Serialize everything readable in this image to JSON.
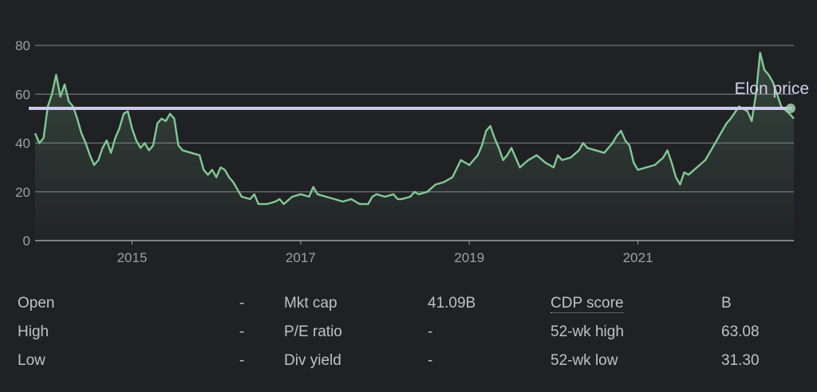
{
  "chart_data": {
    "type": "area",
    "x_range": [
      2013.85,
      2022.85
    ],
    "ylim": [
      0,
      80
    ],
    "y_ticks": [
      0,
      20,
      40,
      60,
      80
    ],
    "x_ticks": [
      2015,
      2017,
      2019,
      2021
    ],
    "x_tick_labels": [
      "2015",
      "2017",
      "2019",
      "2021"
    ],
    "grid": true,
    "series": [
      {
        "color": "#81c995",
        "points": [
          [
            2013.85,
            44
          ],
          [
            2013.9,
            40
          ],
          [
            2013.95,
            42
          ],
          [
            2014.0,
            55
          ],
          [
            2014.05,
            60
          ],
          [
            2014.1,
            68
          ],
          [
            2014.15,
            59
          ],
          [
            2014.2,
            64
          ],
          [
            2014.25,
            57
          ],
          [
            2014.3,
            55
          ],
          [
            2014.35,
            50
          ],
          [
            2014.4,
            44
          ],
          [
            2014.45,
            40
          ],
          [
            2014.5,
            35
          ],
          [
            2014.55,
            31
          ],
          [
            2014.6,
            33
          ],
          [
            2014.65,
            38
          ],
          [
            2014.7,
            41
          ],
          [
            2014.75,
            36
          ],
          [
            2014.8,
            42
          ],
          [
            2014.85,
            46
          ],
          [
            2014.9,
            52
          ],
          [
            2014.95,
            53
          ],
          [
            2015.0,
            46
          ],
          [
            2015.05,
            41
          ],
          [
            2015.1,
            38
          ],
          [
            2015.15,
            40
          ],
          [
            2015.2,
            37
          ],
          [
            2015.25,
            39
          ],
          [
            2015.3,
            48
          ],
          [
            2015.35,
            50
          ],
          [
            2015.4,
            49
          ],
          [
            2015.45,
            52
          ],
          [
            2015.5,
            50
          ],
          [
            2015.55,
            39
          ],
          [
            2015.6,
            37
          ],
          [
            2015.7,
            36
          ],
          [
            2015.8,
            35
          ],
          [
            2015.85,
            29
          ],
          [
            2015.9,
            27
          ],
          [
            2015.95,
            29
          ],
          [
            2016.0,
            26
          ],
          [
            2016.05,
            30
          ],
          [
            2016.1,
            29
          ],
          [
            2016.15,
            26
          ],
          [
            2016.2,
            24
          ],
          [
            2016.25,
            21
          ],
          [
            2016.3,
            18
          ],
          [
            2016.4,
            17
          ],
          [
            2016.45,
            19
          ],
          [
            2016.5,
            15
          ],
          [
            2016.6,
            15
          ],
          [
            2016.7,
            16
          ],
          [
            2016.75,
            17
          ],
          [
            2016.8,
            15
          ],
          [
            2016.9,
            18
          ],
          [
            2017.0,
            19
          ],
          [
            2017.1,
            18
          ],
          [
            2017.15,
            22
          ],
          [
            2017.2,
            19
          ],
          [
            2017.3,
            18
          ],
          [
            2017.4,
            17
          ],
          [
            2017.5,
            16
          ],
          [
            2017.6,
            17
          ],
          [
            2017.7,
            15
          ],
          [
            2017.8,
            15
          ],
          [
            2017.85,
            18
          ],
          [
            2017.9,
            19
          ],
          [
            2018.0,
            18
          ],
          [
            2018.1,
            19
          ],
          [
            2018.15,
            17
          ],
          [
            2018.2,
            17
          ],
          [
            2018.3,
            18
          ],
          [
            2018.35,
            20
          ],
          [
            2018.4,
            19
          ],
          [
            2018.5,
            20
          ],
          [
            2018.6,
            23
          ],
          [
            2018.7,
            24
          ],
          [
            2018.8,
            26
          ],
          [
            2018.9,
            33
          ],
          [
            2019.0,
            31
          ],
          [
            2019.1,
            35
          ],
          [
            2019.15,
            39
          ],
          [
            2019.2,
            45
          ],
          [
            2019.25,
            47
          ],
          [
            2019.3,
            42
          ],
          [
            2019.35,
            38
          ],
          [
            2019.4,
            33
          ],
          [
            2019.45,
            35
          ],
          [
            2019.5,
            38
          ],
          [
            2019.55,
            34
          ],
          [
            2019.6,
            30
          ],
          [
            2019.7,
            33
          ],
          [
            2019.8,
            35
          ],
          [
            2019.9,
            32
          ],
          [
            2020.0,
            30
          ],
          [
            2020.05,
            35
          ],
          [
            2020.1,
            33
          ],
          [
            2020.2,
            34
          ],
          [
            2020.3,
            37
          ],
          [
            2020.35,
            40
          ],
          [
            2020.4,
            38
          ],
          [
            2020.5,
            37
          ],
          [
            2020.6,
            36
          ],
          [
            2020.7,
            40
          ],
          [
            2020.75,
            43
          ],
          [
            2020.8,
            45
          ],
          [
            2020.85,
            41
          ],
          [
            2020.9,
            39
          ],
          [
            2020.95,
            32
          ],
          [
            2021.0,
            29
          ],
          [
            2021.1,
            30
          ],
          [
            2021.2,
            31
          ],
          [
            2021.3,
            34
          ],
          [
            2021.35,
            37
          ],
          [
            2021.4,
            32
          ],
          [
            2021.45,
            26
          ],
          [
            2021.5,
            23
          ],
          [
            2021.55,
            28
          ],
          [
            2021.6,
            27
          ],
          [
            2021.7,
            30
          ],
          [
            2021.8,
            33
          ],
          [
            2021.9,
            39
          ],
          [
            2022.0,
            45
          ],
          [
            2022.05,
            48
          ],
          [
            2022.1,
            50
          ],
          [
            2022.2,
            55
          ],
          [
            2022.3,
            53
          ],
          [
            2022.35,
            49
          ],
          [
            2022.4,
            60
          ],
          [
            2022.45,
            77
          ],
          [
            2022.5,
            70
          ],
          [
            2022.55,
            68
          ],
          [
            2022.6,
            65
          ],
          [
            2022.65,
            60
          ],
          [
            2022.7,
            55
          ],
          [
            2022.8,
            52
          ],
          [
            2022.85,
            50
          ]
        ]
      }
    ],
    "reference_line": {
      "label": "Elon price",
      "value": 54.2,
      "color": "#cfc9ec"
    }
  },
  "stats": {
    "rows": [
      [
        {
          "label": "Open",
          "value": "-"
        },
        {
          "label": "Mkt cap",
          "value": "41.09B"
        },
        {
          "label": "CDP score",
          "value": "B",
          "link": true
        }
      ],
      [
        {
          "label": "High",
          "value": "-"
        },
        {
          "label": "P/E ratio",
          "value": "-"
        },
        {
          "label": "52-wk high",
          "value": "63.08"
        }
      ],
      [
        {
          "label": "Low",
          "value": "-"
        },
        {
          "label": "Div yield",
          "value": "-"
        },
        {
          "label": "52-wk low",
          "value": "31.30"
        }
      ]
    ]
  }
}
